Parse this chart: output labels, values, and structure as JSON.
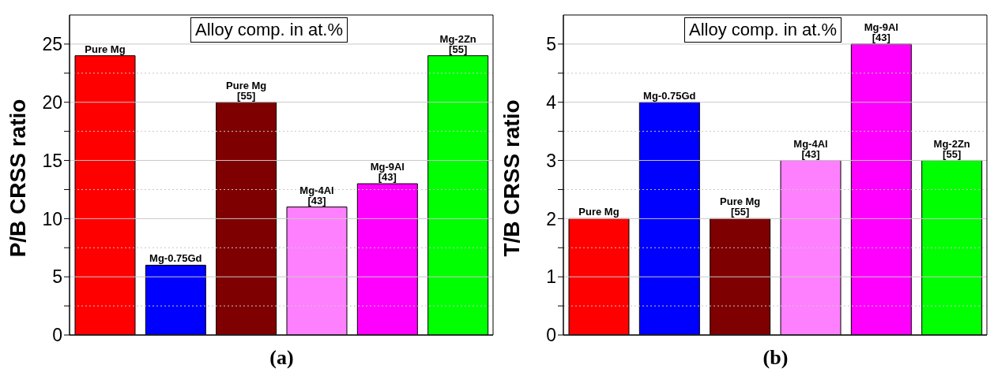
{
  "chart_data": [
    {
      "type": "bar",
      "xlabel": "(a)",
      "ylabel": "P/B CRSS ratio",
      "annotations": [
        "Alloy comp. in at.%"
      ],
      "categories": [
        "Pure Mg",
        "Mg-0.75Gd",
        "Pure Mg [55]",
        "Mg-4Al [43]",
        "Mg-9Al [43]",
        "Mg-2Zn [55]"
      ],
      "values": [
        24,
        6,
        20,
        11,
        13,
        24
      ],
      "colors": [
        "#ff0000",
        "#0000ff",
        "#7f0000",
        "#ff80ff",
        "#ff00ff",
        "#00ff00"
      ],
      "ylim": [
        0,
        27.5
      ],
      "yticks": [
        0,
        {
          "value": 2.5,
          "label": null
        },
        5,
        {
          "value": 7.5,
          "label": null
        },
        10,
        {
          "value": 12.5,
          "label": null
        },
        15,
        {
          "value": 17.5,
          "label": null
        },
        20,
        {
          "value": 22.5,
          "label": null
        },
        25
      ],
      "grid": "y",
      "tick_labels": "y"
    },
    {
      "type": "bar",
      "xlabel": "(b)",
      "ylabel": "T/B CRSS ratio",
      "annotations": [
        "Alloy comp. in at.%"
      ],
      "categories": [
        "Pure Mg",
        "Mg-0.75Gd",
        "Pure Mg [55]",
        "Mg-4Al [43]",
        "Mg-9Al [43]",
        "Mg-2Zn [55]"
      ],
      "values": [
        2,
        4,
        2,
        3,
        5,
        3
      ],
      "colors": [
        "#ff0000",
        "#0000ff",
        "#7f0000",
        "#ff80ff",
        "#ff00ff",
        "#00ff00"
      ],
      "ylim": [
        0,
        5.5
      ],
      "yticks": [
        0,
        {
          "value": 0.5,
          "label": null
        },
        1,
        {
          "value": 1.5,
          "label": null
        },
        2,
        {
          "value": 2.5,
          "label": null
        },
        3,
        {
          "value": 3.5,
          "label": null
        },
        4,
        {
          "value": 4.5,
          "label": null
        },
        5
      ],
      "grid": "y",
      "tick_labels": "y"
    }
  ]
}
